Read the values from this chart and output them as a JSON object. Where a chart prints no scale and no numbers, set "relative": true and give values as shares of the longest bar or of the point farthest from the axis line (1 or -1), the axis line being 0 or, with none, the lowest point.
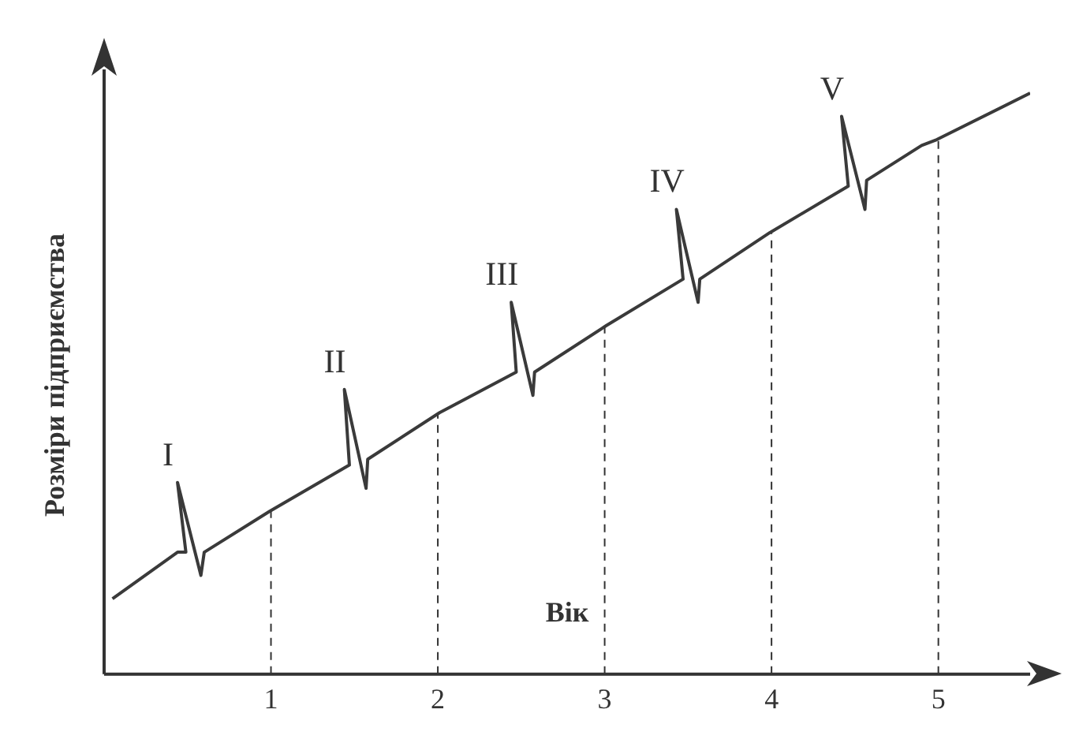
{
  "chart_data": {
    "type": "line",
    "relative": true,
    "xlabel": "Вік",
    "ylabel": "Розміри підприємства",
    "x": [
      0.05,
      0.44,
      0.49,
      0.44,
      0.58,
      0.6,
      0.99,
      1.47,
      1.44,
      1.57,
      1.58,
      2.01,
      2.47,
      2.44,
      2.57,
      2.58,
      3.01,
      3.47,
      3.43,
      3.56,
      3.57,
      3.99,
      4.46,
      4.42,
      4.56,
      4.57,
      4.9,
      4.99,
      5.55
    ],
    "series": [
      {
        "color": "#3a3a3a",
        "values": [
          0.13,
          0.21,
          0.21,
          0.33,
          0.17,
          0.21,
          0.28,
          0.36,
          0.49,
          0.32,
          0.37,
          0.45,
          0.52,
          0.64,
          0.48,
          0.52,
          0.6,
          0.68,
          0.8,
          0.64,
          0.68,
          0.76,
          0.84,
          0.96,
          0.8,
          0.85,
          0.91,
          0.92,
          1.0
        ]
      }
    ],
    "xlim": [
      0,
      5.55
    ],
    "xticks": [
      1,
      2,
      3,
      4,
      5
    ],
    "tick_labels": "x",
    "grid": false,
    "legend": false,
    "marker": "none",
    "line_style": "solid",
    "ref_lines": [
      {
        "axis": "x",
        "value": 1,
        "line_style": "dashed"
      },
      {
        "axis": "x",
        "value": 2,
        "line_style": "dashed"
      },
      {
        "axis": "x",
        "value": 3,
        "line_style": "dashed"
      },
      {
        "axis": "x",
        "value": 4,
        "line_style": "dashed"
      },
      {
        "axis": "x",
        "value": 5,
        "line_style": "dashed"
      }
    ],
    "annotations": [
      {
        "text": "I",
        "x": 0.44,
        "y": 0.33
      },
      {
        "text": "II",
        "x": 1.44,
        "y": 0.49
      },
      {
        "text": "III",
        "x": 2.44,
        "y": 0.64
      },
      {
        "text": "IV",
        "x": 3.43,
        "y": 0.8
      },
      {
        "text": "V",
        "x": 4.42,
        "y": 0.96
      }
    ]
  }
}
